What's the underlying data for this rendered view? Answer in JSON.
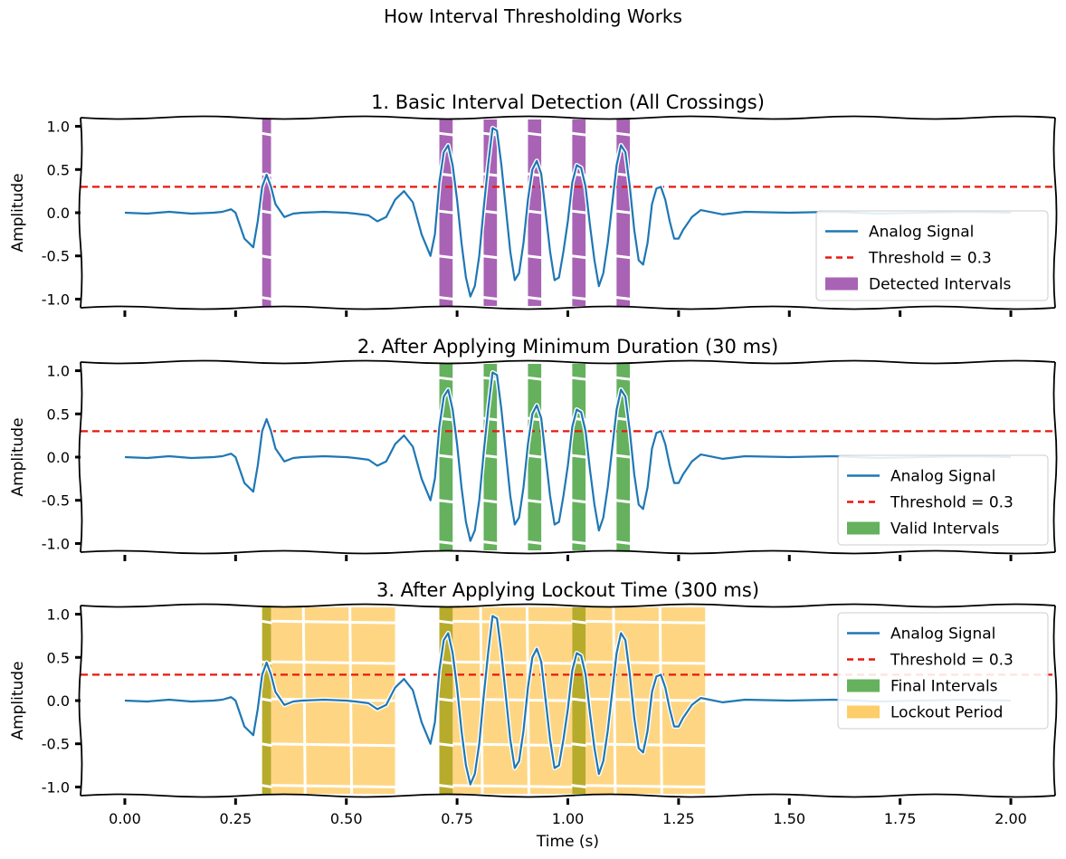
{
  "figure": {
    "title": "How Interval Thresholding Works"
  },
  "chart_data": [
    {
      "type": "line",
      "title": "1. Basic Interval Detection (All Crossings)",
      "xlabel": "",
      "ylabel": "Amplitude",
      "xlim": [
        -0.1,
        2.1
      ],
      "ylim": [
        -1.1,
        1.1
      ],
      "yticks": [
        1.0,
        0.5,
        0.0,
        -0.5,
        -1.0
      ],
      "ytick_labels": [
        "1.0",
        "0.5",
        "0.0",
        "-0.5",
        "-1.0"
      ],
      "xticks": [
        0.0,
        0.25,
        0.5,
        0.75,
        1.0,
        1.25,
        1.5,
        1.75,
        2.0
      ],
      "xtick_labels": [],
      "threshold": 0.3,
      "spans": [
        {
          "group": "detected",
          "x0": 0.31,
          "x1": 0.33
        },
        {
          "group": "detected",
          "x0": 0.71,
          "x1": 0.74
        },
        {
          "group": "detected",
          "x0": 0.81,
          "x1": 0.84
        },
        {
          "group": "detected",
          "x0": 0.91,
          "x1": 0.94
        },
        {
          "group": "detected",
          "x0": 1.01,
          "x1": 1.04
        },
        {
          "group": "detected",
          "x0": 1.11,
          "x1": 1.14
        }
      ],
      "legend": {
        "position": "lower right",
        "entries": [
          {
            "label": "Analog Signal",
            "kind": "line",
            "color": "#1f77b4"
          },
          {
            "label": "Threshold = 0.3",
            "kind": "dashed",
            "color": "#e8170d"
          },
          {
            "label": "Detected Intervals",
            "kind": "patch",
            "color": "#a052ad"
          }
        ]
      }
    },
    {
      "type": "line",
      "title": "2. After Applying Minimum Duration (30 ms)",
      "xlabel": "",
      "ylabel": "Amplitude",
      "xlim": [
        -0.1,
        2.1
      ],
      "ylim": [
        -1.1,
        1.1
      ],
      "yticks": [
        1.0,
        0.5,
        0.0,
        -0.5,
        -1.0
      ],
      "ytick_labels": [
        "1.0",
        "0.5",
        "0.0",
        "-0.5",
        "-1.0"
      ],
      "xticks": [
        0.0,
        0.25,
        0.5,
        0.75,
        1.0,
        1.25,
        1.5,
        1.75,
        2.0
      ],
      "xtick_labels": [],
      "threshold": 0.3,
      "spans": [
        {
          "group": "valid",
          "x0": 0.71,
          "x1": 0.74
        },
        {
          "group": "valid",
          "x0": 0.81,
          "x1": 0.84
        },
        {
          "group": "valid",
          "x0": 0.91,
          "x1": 0.94
        },
        {
          "group": "valid",
          "x0": 1.01,
          "x1": 1.04
        },
        {
          "group": "valid",
          "x0": 1.11,
          "x1": 1.14
        }
      ],
      "legend": {
        "position": "lower right",
        "entries": [
          {
            "label": "Analog Signal",
            "kind": "line",
            "color": "#1f77b4"
          },
          {
            "label": "Threshold = 0.3",
            "kind": "dashed",
            "color": "#e8170d"
          },
          {
            "label": "Valid Intervals",
            "kind": "patch",
            "color": "#54a84c"
          }
        ]
      }
    },
    {
      "type": "line",
      "title": "3. After Applying Lockout Time (300 ms)",
      "xlabel": "Time (s)",
      "ylabel": "Amplitude",
      "xlim": [
        -0.1,
        2.1
      ],
      "ylim": [
        -1.1,
        1.1
      ],
      "yticks": [
        1.0,
        0.5,
        0.0,
        -0.5,
        -1.0
      ],
      "ytick_labels": [
        "1.0",
        "0.5",
        "0.0",
        "-0.5",
        "-1.0"
      ],
      "xticks": [
        0.0,
        0.25,
        0.5,
        0.75,
        1.0,
        1.25,
        1.5,
        1.75,
        2.0
      ],
      "xtick_labels": [
        "0.00",
        "0.25",
        "0.50",
        "0.75",
        "1.00",
        "1.25",
        "1.50",
        "1.75",
        "2.00"
      ],
      "threshold": 0.3,
      "spans": [
        {
          "group": "lockout",
          "x0": 0.31,
          "x1": 0.61
        },
        {
          "group": "lockout",
          "x0": 0.71,
          "x1": 1.01
        },
        {
          "group": "lockout",
          "x0": 1.01,
          "x1": 1.31
        },
        {
          "group": "final",
          "x0": 0.31,
          "x1": 0.33
        },
        {
          "group": "final",
          "x0": 0.71,
          "x1": 0.74
        },
        {
          "group": "final",
          "x0": 1.01,
          "x1": 1.04
        }
      ],
      "legend": {
        "position": "upper right",
        "entries": [
          {
            "label": "Analog Signal",
            "kind": "line",
            "color": "#1f77b4"
          },
          {
            "label": "Threshold = 0.3",
            "kind": "dashed",
            "color": "#e8170d"
          },
          {
            "label": "Final Intervals",
            "kind": "patch",
            "color": "#54a84c"
          },
          {
            "label": "Lockout Period",
            "kind": "patch",
            "color": "#fdc859"
          }
        ]
      }
    }
  ],
  "signal": {
    "name": "Analog Signal",
    "color": "#1f77b4",
    "x": [
      0,
      0.05,
      0.1,
      0.15,
      0.2,
      0.22,
      0.24,
      0.25,
      0.27,
      0.29,
      0.3,
      0.31,
      0.32,
      0.33,
      0.34,
      0.36,
      0.38,
      0.4,
      0.45,
      0.5,
      0.52,
      0.55,
      0.57,
      0.59,
      0.61,
      0.63,
      0.65,
      0.67,
      0.69,
      0.7,
      0.71,
      0.72,
      0.73,
      0.74,
      0.75,
      0.76,
      0.77,
      0.78,
      0.79,
      0.8,
      0.81,
      0.82,
      0.83,
      0.84,
      0.85,
      0.86,
      0.87,
      0.88,
      0.89,
      0.9,
      0.91,
      0.92,
      0.93,
      0.94,
      0.95,
      0.96,
      0.97,
      0.98,
      0.99,
      1.0,
      1.01,
      1.02,
      1.03,
      1.04,
      1.05,
      1.06,
      1.07,
      1.08,
      1.09,
      1.1,
      1.11,
      1.12,
      1.13,
      1.14,
      1.15,
      1.16,
      1.17,
      1.18,
      1.19,
      1.2,
      1.21,
      1.22,
      1.23,
      1.24,
      1.25,
      1.26,
      1.28,
      1.3,
      1.35,
      1.4,
      1.5,
      1.6,
      1.7,
      1.8,
      1.9,
      2.0
    ],
    "y": [
      0,
      -0.01,
      0.01,
      -0.01,
      0.0,
      0.01,
      0.04,
      0.0,
      -0.3,
      -0.4,
      -0.1,
      0.3,
      0.44,
      0.3,
      0.1,
      -0.05,
      -0.01,
      0.0,
      0.01,
      0.0,
      -0.01,
      -0.03,
      -0.1,
      -0.05,
      0.15,
      0.25,
      0.12,
      -0.25,
      -0.5,
      -0.25,
      0.35,
      0.7,
      0.78,
      0.55,
      0.15,
      -0.35,
      -0.75,
      -0.97,
      -0.85,
      -0.5,
      0.05,
      0.55,
      0.98,
      0.95,
      0.55,
      0.05,
      -0.45,
      -0.78,
      -0.7,
      -0.35,
      0.15,
      0.5,
      0.6,
      0.45,
      0.0,
      -0.45,
      -0.78,
      -0.75,
      -0.45,
      -0.1,
      0.35,
      0.55,
      0.52,
      0.3,
      -0.15,
      -0.55,
      -0.85,
      -0.7,
      -0.35,
      0.1,
      0.55,
      0.78,
      0.7,
      0.3,
      -0.2,
      -0.55,
      -0.6,
      -0.35,
      0.1,
      0.28,
      0.3,
      0.15,
      -0.1,
      -0.3,
      -0.3,
      -0.2,
      -0.05,
      0.03,
      -0.02,
      0.01,
      0.0,
      0.01,
      -0.01,
      0.0,
      0.01,
      0.0
    ]
  },
  "threshold_line": {
    "name": "Threshold = 0.3",
    "color": "#e8170d",
    "value": 0.3
  },
  "colors": {
    "detected": "#a052ad",
    "valid": "#54a84c",
    "final": "#54a84c",
    "final_on_lockout": "#b3a927",
    "lockout": "#fdc859",
    "signal": "#1f77b4",
    "threshold": "#e8170d"
  }
}
